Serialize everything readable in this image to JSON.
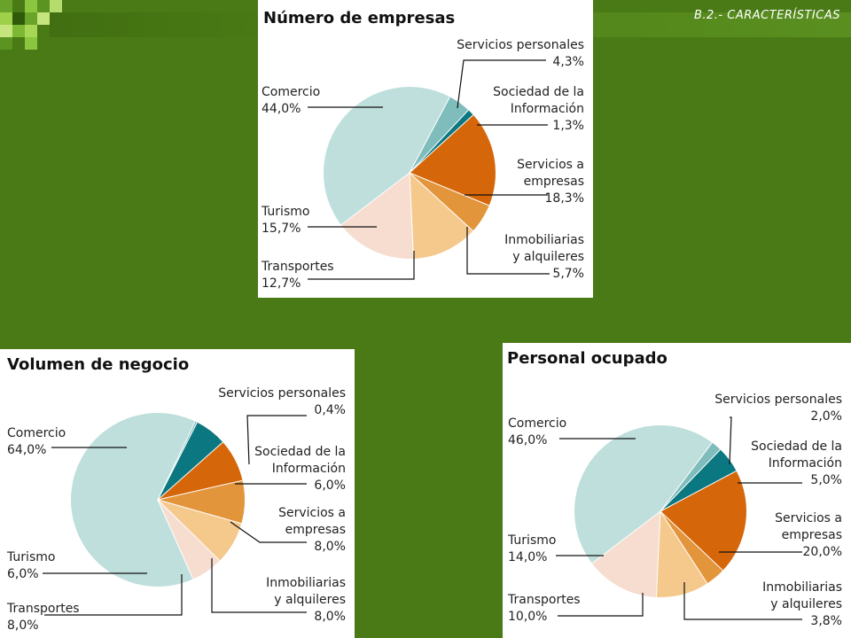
{
  "header": {
    "section": "B.2.- CARACTERÍSTICAS"
  },
  "colors": {
    "background": "#4a7a16",
    "comercio": "#bfdfdc",
    "servicios_personales": "#7fbcbc",
    "sociedad_informacion": "#0b7780",
    "servicios_empresas": "#d6660a",
    "inmobiliarias": "#e2953b",
    "transportes": "#f5c88c",
    "turismo": "#f6ddd0"
  },
  "chart_data": [
    {
      "type": "pie",
      "title": "Número de empresas",
      "slices": [
        {
          "label": [
            "Servicios personales"
          ],
          "value": 4.3,
          "display": "4,3%",
          "color": "#7fbcbc"
        },
        {
          "label": [
            "Sociedad de la",
            "Información"
          ],
          "value": 1.3,
          "display": "1,3%",
          "color": "#0b7780"
        },
        {
          "label": [
            "Servicios a",
            "empresas"
          ],
          "value": 18.3,
          "display": "18,3%",
          "color": "#d6660a"
        },
        {
          "label": [
            "Inmobiliarias",
            "y alquileres"
          ],
          "value": 5.7,
          "display": "5,7%",
          "color": "#e2953b"
        },
        {
          "label": [
            "Transportes"
          ],
          "value": 12.7,
          "display": "12,7%",
          "color": "#f5c88c"
        },
        {
          "label": [
            "Turismo"
          ],
          "value": 15.7,
          "display": "15,7%",
          "color": "#f6ddd0"
        },
        {
          "label": [
            "Comercio"
          ],
          "value": 44.0,
          "display": "44,0%",
          "color": "#bfdfdc"
        }
      ]
    },
    {
      "type": "pie",
      "title": "Volumen de negocio",
      "slices": [
        {
          "label": [
            "Servicios personales"
          ],
          "value": 0.4,
          "display": "0,4%",
          "color": "#7fbcbc"
        },
        {
          "label": [
            "Sociedad de la",
            "Información"
          ],
          "value": 6.0,
          "display": "6,0%",
          "color": "#0b7780"
        },
        {
          "label": [
            "Servicios a",
            "empresas"
          ],
          "value": 8.0,
          "display": "8,0%",
          "color": "#d6660a"
        },
        {
          "label": [
            "Inmobiliarias",
            "y alquileres"
          ],
          "value": 8.0,
          "display": "8,0%",
          "color": "#e2953b"
        },
        {
          "label": [
            "Transportes"
          ],
          "value": 8.0,
          "display": "8,0%",
          "color": "#f5c88c"
        },
        {
          "label": [
            "Turismo"
          ],
          "value": 6.0,
          "display": "6,0%",
          "color": "#f6ddd0"
        },
        {
          "label": [
            "Comercio"
          ],
          "value": 64.0,
          "display": "64,0%",
          "color": "#bfdfdc"
        }
      ]
    },
    {
      "type": "pie",
      "title": "Personal ocupado",
      "slices": [
        {
          "label": [
            "Servicios personales"
          ],
          "value": 2.0,
          "display": "2,0%",
          "color": "#7fbcbc"
        },
        {
          "label": [
            "Sociedad de la",
            "Información"
          ],
          "value": 5.0,
          "display": "5,0%",
          "color": "#0b7780"
        },
        {
          "label": [
            "Servicios a",
            "empresas"
          ],
          "value": 20.0,
          "display": "20,0%",
          "color": "#d6660a"
        },
        {
          "label": [
            "Inmobiliarias",
            "y alquileres"
          ],
          "value": 3.8,
          "display": "3,8%",
          "color": "#e2953b"
        },
        {
          "label": [
            "Transportes"
          ],
          "value": 10.0,
          "display": "10,0%",
          "color": "#f5c88c"
        },
        {
          "label": [
            "Turismo"
          ],
          "value": 14.0,
          "display": "14,0%",
          "color": "#f6ddd0"
        },
        {
          "label": [
            "Comercio"
          ],
          "value": 46.0,
          "display": "46,0%",
          "color": "#bfdfdc"
        }
      ]
    }
  ]
}
